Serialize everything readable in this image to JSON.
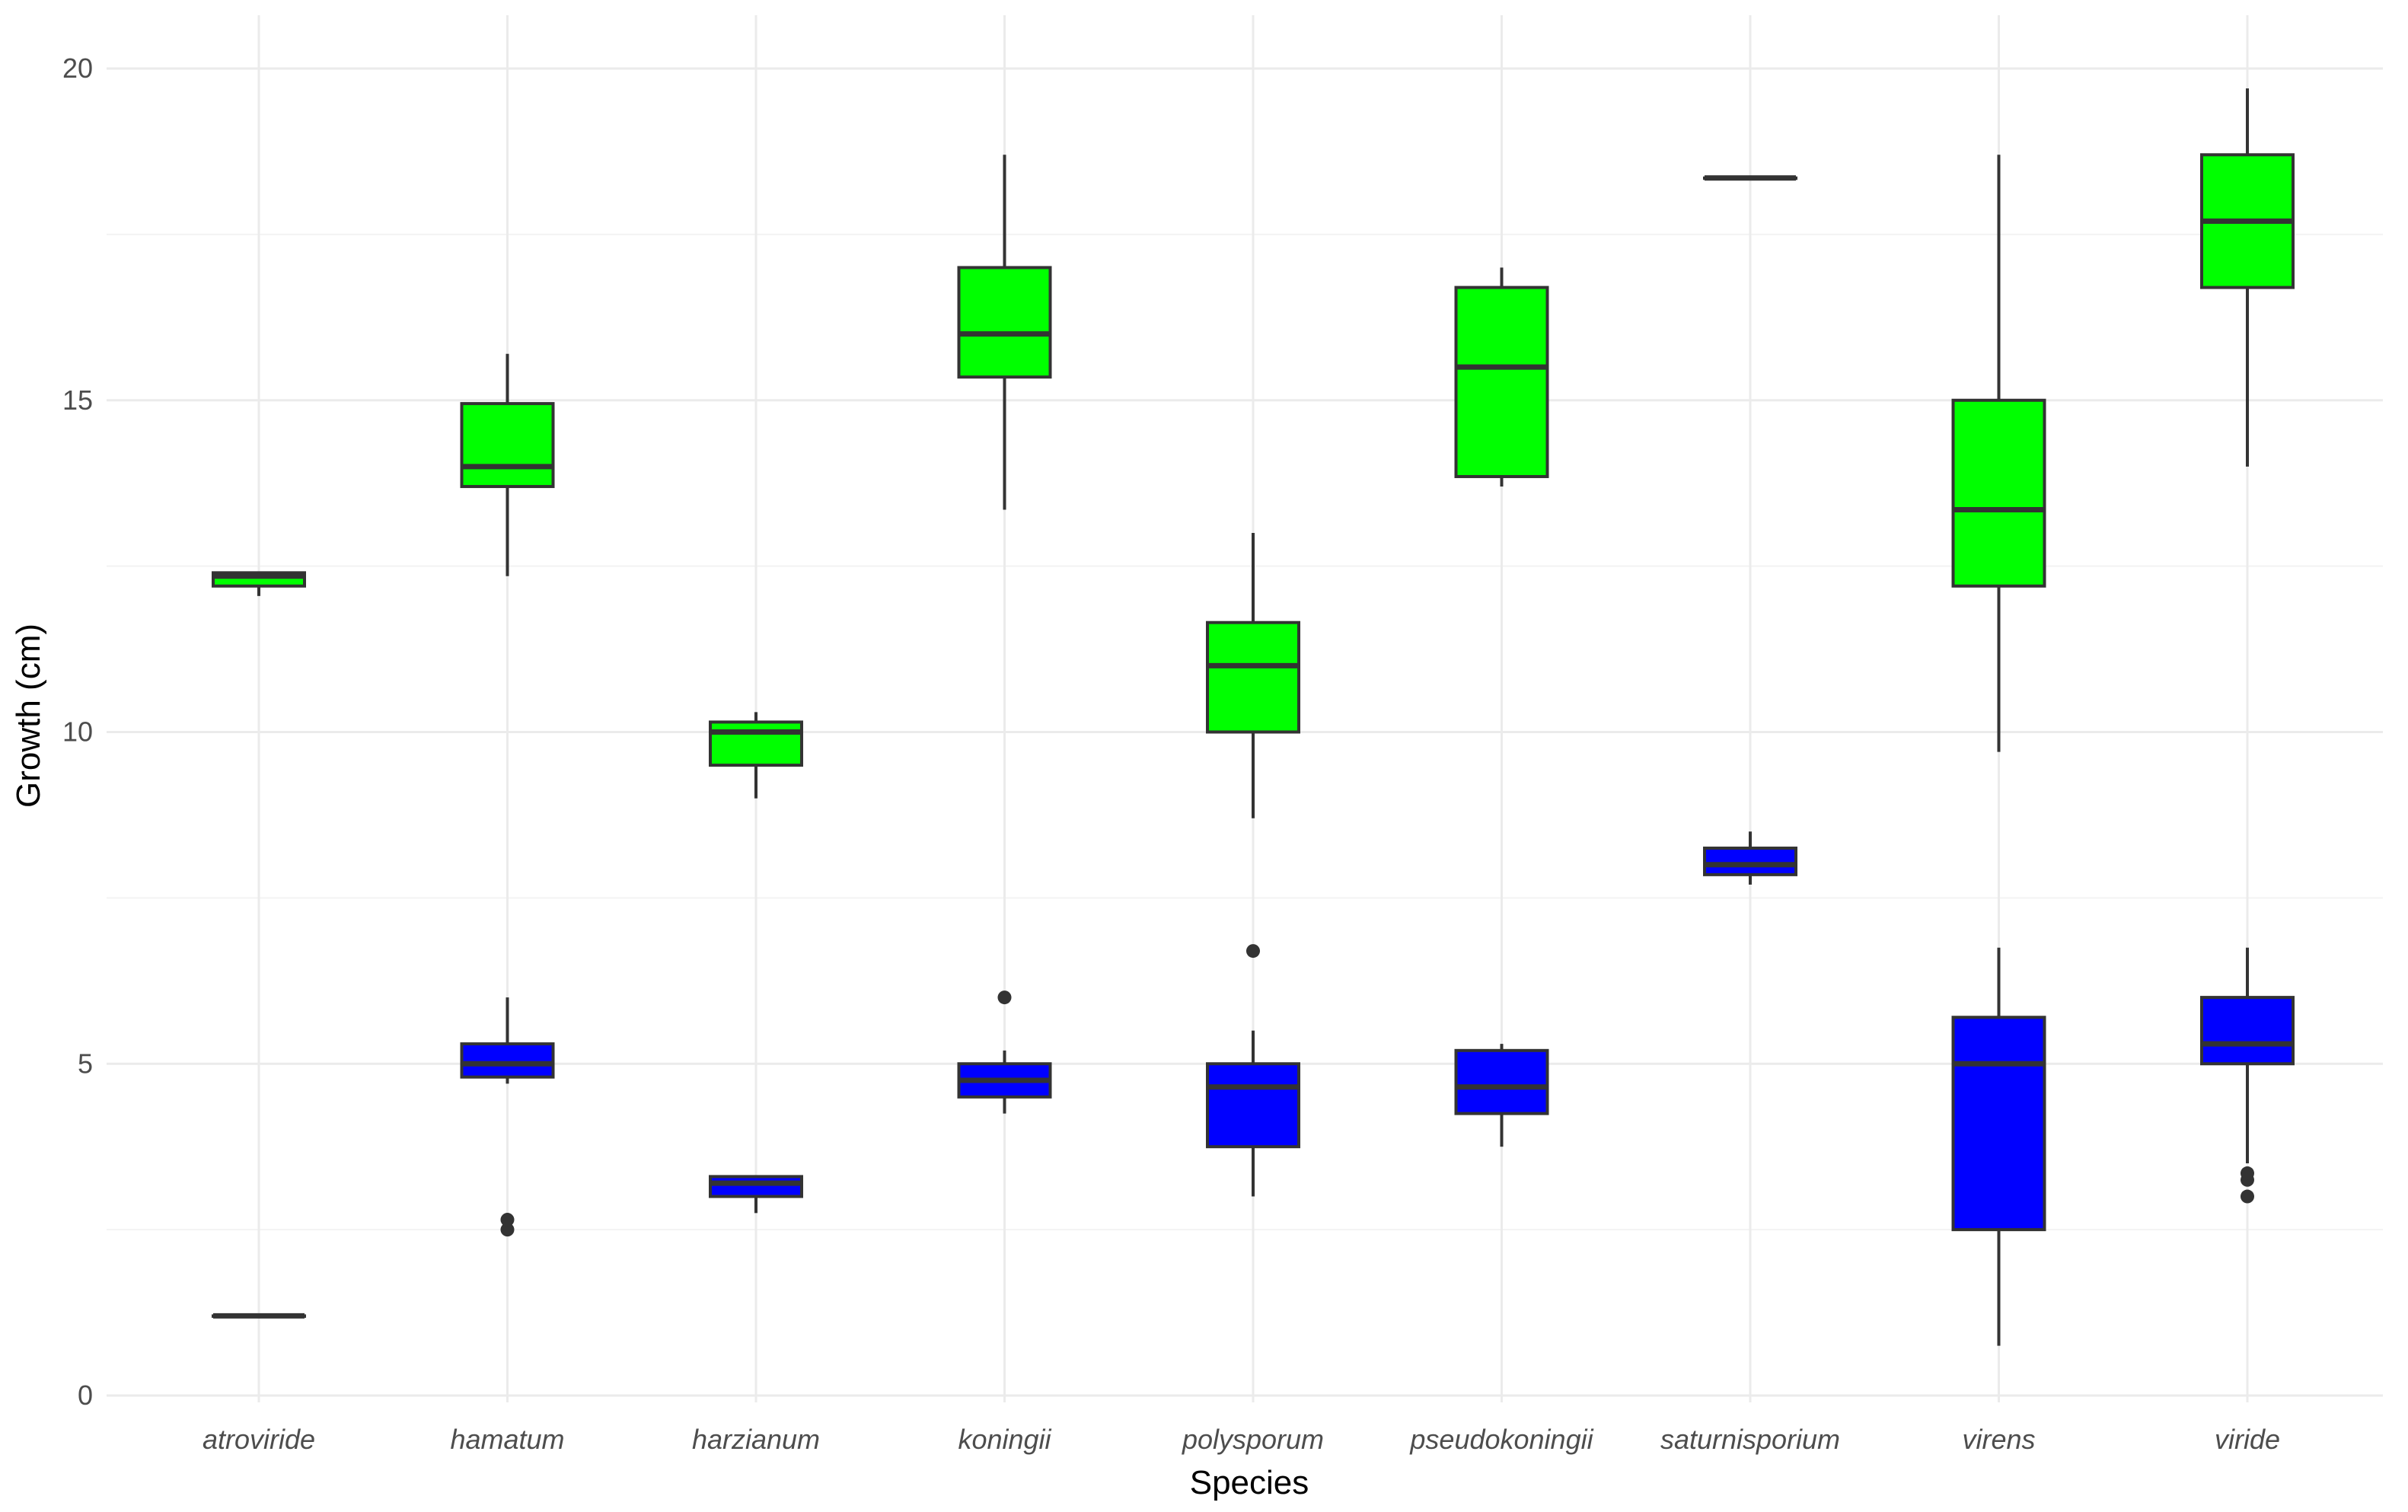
{
  "chart_data": {
    "type": "boxplot",
    "title": "",
    "xlabel": "Species",
    "ylabel": "Growth (cm)",
    "ylim": [
      0,
      20
    ],
    "yticks": [
      0,
      5,
      10,
      15,
      20
    ],
    "grid": true,
    "categories": [
      "atroviride",
      "hamatum",
      "harzianum",
      "koningii",
      "polysporum",
      "pseudokoningii",
      "saturnisporium",
      "virens",
      "viride"
    ],
    "colors": {
      "high": "#00ff00",
      "low": "#0000ff",
      "outline": "#333333",
      "grid": "#ebebeb"
    },
    "series": [
      {
        "name": "green",
        "color": "#00ff00",
        "boxes": [
          {
            "category": "atroviride",
            "lower_whisker": 12.05,
            "q1": 12.2,
            "median": 12.35,
            "q3": 12.4,
            "upper_whisker": 12.4,
            "outliers": []
          },
          {
            "category": "hamatum",
            "lower_whisker": 12.35,
            "q1": 13.7,
            "median": 14.0,
            "q3": 14.95,
            "upper_whisker": 15.7,
            "outliers": []
          },
          {
            "category": "harzianum",
            "lower_whisker": 9.0,
            "q1": 9.5,
            "median": 10.0,
            "q3": 10.15,
            "upper_whisker": 10.3,
            "outliers": []
          },
          {
            "category": "koningii",
            "lower_whisker": 13.35,
            "q1": 15.35,
            "median": 16.0,
            "q3": 17.0,
            "upper_whisker": 18.7,
            "outliers": []
          },
          {
            "category": "polysporum",
            "lower_whisker": 8.7,
            "q1": 10.0,
            "median": 11.0,
            "q3": 11.65,
            "upper_whisker": 13.0,
            "outliers": []
          },
          {
            "category": "pseudokoningii",
            "lower_whisker": 13.7,
            "q1": 13.85,
            "median": 15.5,
            "q3": 16.7,
            "upper_whisker": 17.0,
            "outliers": []
          },
          {
            "category": "saturnisporium",
            "lower_whisker": 18.35,
            "q1": 18.35,
            "median": 18.35,
            "q3": 18.35,
            "upper_whisker": 18.35,
            "outliers": []
          },
          {
            "category": "virens",
            "lower_whisker": 9.7,
            "q1": 12.2,
            "median": 13.35,
            "q3": 15.0,
            "upper_whisker": 18.7,
            "outliers": []
          },
          {
            "category": "viride",
            "lower_whisker": 14.0,
            "q1": 16.7,
            "median": 17.7,
            "q3": 18.7,
            "upper_whisker": 19.7,
            "outliers": []
          }
        ]
      },
      {
        "name": "blue",
        "color": "#0000ff",
        "boxes": [
          {
            "category": "atroviride",
            "lower_whisker": 1.2,
            "q1": 1.2,
            "median": 1.2,
            "q3": 1.2,
            "upper_whisker": 1.2,
            "outliers": []
          },
          {
            "category": "hamatum",
            "lower_whisker": 4.7,
            "q1": 4.8,
            "median": 5.0,
            "q3": 5.3,
            "upper_whisker": 6.0,
            "outliers": [
              2.5,
              2.65
            ]
          },
          {
            "category": "harzianum",
            "lower_whisker": 2.75,
            "q1": 3.0,
            "median": 3.2,
            "q3": 3.3,
            "upper_whisker": 3.3,
            "outliers": []
          },
          {
            "category": "koningii",
            "lower_whisker": 4.25,
            "q1": 4.5,
            "median": 4.75,
            "q3": 5.0,
            "upper_whisker": 5.2,
            "outliers": [
              6.0
            ]
          },
          {
            "category": "polysporum",
            "lower_whisker": 3.0,
            "q1": 3.75,
            "median": 4.65,
            "q3": 5.0,
            "upper_whisker": 5.5,
            "outliers": [
              6.7
            ]
          },
          {
            "category": "pseudokoningii",
            "lower_whisker": 3.75,
            "q1": 4.25,
            "median": 4.65,
            "q3": 5.2,
            "upper_whisker": 5.3,
            "outliers": []
          },
          {
            "category": "saturnisporium",
            "lower_whisker": 7.7,
            "q1": 7.85,
            "median": 8.0,
            "q3": 8.25,
            "upper_whisker": 8.5,
            "outliers": []
          },
          {
            "category": "virens",
            "lower_whisker": 0.75,
            "q1": 2.5,
            "median": 5.0,
            "q3": 5.7,
            "upper_whisker": 6.75,
            "outliers": []
          },
          {
            "category": "viride",
            "lower_whisker": 3.5,
            "q1": 5.0,
            "median": 5.3,
            "q3": 6.0,
            "upper_whisker": 6.75,
            "outliers": [
              3.0,
              3.25,
              3.35
            ]
          }
        ]
      }
    ]
  }
}
